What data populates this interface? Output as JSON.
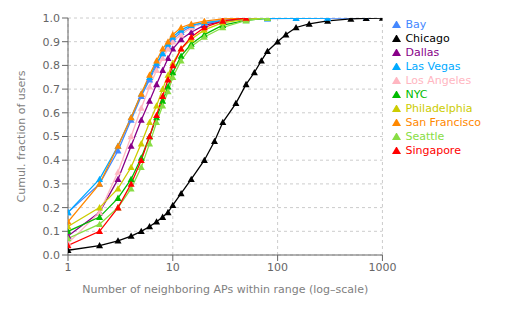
{
  "chart_data": {
    "type": "line",
    "xlabel": "Number of neighboring APs within range (log–scale)",
    "ylabel": "Cumul. fraction of users",
    "log": "x",
    "grid": true,
    "legend": "right",
    "xlim": [
      1,
      1000
    ],
    "xticks": [
      1,
      10,
      100,
      1000
    ],
    "ylim": [
      0,
      1.0
    ],
    "yticks": [
      {
        "value": 0,
        "label": "0.0"
      },
      0.1,
      0.2,
      0.3,
      0.4,
      0.5,
      0.6,
      0.7,
      0.8,
      0.9,
      {
        "value": 1.0,
        "label": "1.0"
      }
    ],
    "series": [
      {
        "name": "Bay",
        "color": "#4488FF",
        "marker": "triangle",
        "x": [
          1,
          2,
          3,
          4,
          5,
          6,
          7,
          8,
          9,
          10,
          12,
          15,
          20,
          30,
          50,
          80,
          150,
          300,
          700
        ],
        "values": [
          0.18,
          0.3,
          0.44,
          0.57,
          0.67,
          0.74,
          0.8,
          0.85,
          0.88,
          0.91,
          0.94,
          0.965,
          0.977,
          0.988,
          0.994,
          0.997,
          0.999,
          1.0,
          1.0
        ]
      },
      {
        "name": "Chicago",
        "color": "#000000",
        "marker": "triangle",
        "x": [
          1,
          2,
          3,
          4,
          5,
          6,
          7,
          8,
          9,
          10,
          12,
          15,
          20,
          25,
          30,
          40,
          50,
          60,
          70,
          80,
          100,
          120,
          150,
          200,
          300,
          500,
          700,
          1000
        ],
        "values": [
          0.02,
          0.04,
          0.06,
          0.08,
          0.1,
          0.12,
          0.14,
          0.16,
          0.18,
          0.21,
          0.26,
          0.32,
          0.4,
          0.48,
          0.56,
          0.64,
          0.72,
          0.77,
          0.82,
          0.86,
          0.9,
          0.93,
          0.96,
          0.975,
          0.988,
          0.996,
          0.999,
          1.0
        ]
      },
      {
        "name": "Dallas",
        "color": "#880088",
        "marker": "triangle",
        "x": [
          1,
          2,
          3,
          4,
          5,
          6,
          7,
          8,
          9,
          10,
          12,
          15,
          20,
          30,
          50,
          80
        ],
        "values": [
          0.08,
          0.18,
          0.32,
          0.46,
          0.57,
          0.65,
          0.72,
          0.78,
          0.83,
          0.87,
          0.91,
          0.94,
          0.97,
          0.985,
          0.995,
          1.0
        ]
      },
      {
        "name": "Los Angeles",
        "color": "#FFB6C1",
        "marker": "triangle",
        "x": [
          1,
          2,
          3,
          4,
          5,
          6,
          7,
          8,
          9,
          10,
          12,
          15,
          20,
          30,
          50
        ],
        "values": [
          0.05,
          0.18,
          0.35,
          0.5,
          0.62,
          0.71,
          0.78,
          0.83,
          0.87,
          0.9,
          0.93,
          0.96,
          0.98,
          0.993,
          1.0
        ]
      },
      {
        "name": "Las Vegas",
        "color": "#00AAFF",
        "marker": "triangle",
        "x": [
          1,
          2,
          3,
          4,
          5,
          6,
          7,
          8,
          9,
          10,
          12,
          15,
          20,
          30,
          50,
          80,
          150,
          300
        ],
        "values": [
          0.18,
          0.32,
          0.46,
          0.58,
          0.68,
          0.75,
          0.81,
          0.85,
          0.89,
          0.92,
          0.95,
          0.97,
          0.98,
          0.99,
          0.996,
          0.998,
          0.999,
          1.0
        ]
      },
      {
        "name": "NYC",
        "color": "#00BB00",
        "marker": "triangle",
        "x": [
          1,
          2,
          3,
          4,
          5,
          6,
          7,
          8,
          9,
          10,
          12,
          15,
          20,
          30,
          50,
          80
        ],
        "values": [
          0.1,
          0.16,
          0.24,
          0.32,
          0.41,
          0.5,
          0.58,
          0.65,
          0.71,
          0.77,
          0.84,
          0.89,
          0.93,
          0.97,
          0.99,
          1.0
        ]
      },
      {
        "name": "Philadelphia",
        "color": "#CCCC00",
        "marker": "triangle",
        "x": [
          1,
          2,
          3,
          4,
          5,
          6,
          7,
          8,
          9,
          10,
          12,
          15,
          20,
          30,
          50,
          80
        ],
        "values": [
          0.12,
          0.2,
          0.28,
          0.37,
          0.47,
          0.56,
          0.63,
          0.7,
          0.76,
          0.81,
          0.87,
          0.91,
          0.95,
          0.98,
          0.995,
          1.0
        ]
      },
      {
        "name": "San Francisco",
        "color": "#FF8800",
        "marker": "triangle",
        "x": [
          1,
          2,
          3,
          4,
          5,
          6,
          7,
          8,
          9,
          10,
          12,
          15,
          20,
          30,
          50
        ],
        "values": [
          0.14,
          0.3,
          0.46,
          0.58,
          0.68,
          0.76,
          0.82,
          0.87,
          0.9,
          0.93,
          0.96,
          0.975,
          0.987,
          0.996,
          1.0
        ]
      },
      {
        "name": "Seattle",
        "color": "#88DD44",
        "marker": "triangle",
        "x": [
          1,
          2,
          3,
          4,
          5,
          6,
          7,
          8,
          9,
          10,
          12,
          15,
          20,
          30,
          50,
          80
        ],
        "values": [
          0.07,
          0.13,
          0.2,
          0.28,
          0.37,
          0.47,
          0.56,
          0.63,
          0.69,
          0.75,
          0.82,
          0.88,
          0.92,
          0.96,
          0.99,
          1.0
        ]
      },
      {
        "name": "Singapore",
        "color": "#FF0000",
        "marker": "triangle",
        "x": [
          1,
          2,
          3,
          4,
          5,
          6,
          7,
          8,
          9,
          10,
          12,
          15,
          20,
          30,
          50
        ],
        "values": [
          0.04,
          0.1,
          0.2,
          0.3,
          0.4,
          0.5,
          0.59,
          0.67,
          0.74,
          0.8,
          0.87,
          0.92,
          0.96,
          0.988,
          1.0
        ]
      }
    ]
  }
}
